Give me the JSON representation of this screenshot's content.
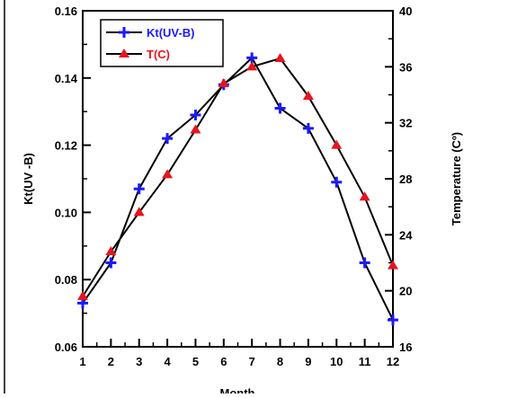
{
  "chart_data": {
    "type": "line",
    "xlabel": "Month",
    "ylabel_left": "Kt(UV -B)",
    "ylabel_right": "Temperature (Cº)",
    "x": [
      1,
      2,
      3,
      4,
      5,
      6,
      7,
      8,
      9,
      10,
      11,
      12
    ],
    "x_ticks": [
      "1",
      "2",
      "3",
      "4",
      "5",
      "6",
      "7",
      "8",
      "9",
      "10",
      "11",
      "12"
    ],
    "y_left_lim": [
      0.06,
      0.16
    ],
    "y_left_ticks": [
      "0.06",
      "0.08",
      "0.10",
      "0.12",
      "0.14",
      "0.16"
    ],
    "y_right_lim": [
      16,
      40
    ],
    "y_right_ticks": [
      "16",
      "20",
      "24",
      "28",
      "32",
      "36",
      "40"
    ],
    "grid": false,
    "legend_position": "top-left",
    "series": [
      {
        "name": "Kt(UV-B)",
        "axis": "left",
        "marker": "plus",
        "marker_color": "#1a1aff",
        "line_color": "#000000",
        "values": [
          0.073,
          0.085,
          0.107,
          0.122,
          0.129,
          0.138,
          0.146,
          0.131,
          0.125,
          0.109,
          0.085,
          0.068
        ]
      },
      {
        "name": "T(C)",
        "axis": "right",
        "marker": "triangle",
        "marker_color": "#e8141e",
        "line_color": "#000000",
        "values": [
          19.6,
          22.8,
          25.6,
          28.3,
          31.5,
          34.8,
          36.0,
          36.6,
          33.9,
          30.4,
          26.7,
          21.8
        ]
      }
    ]
  }
}
